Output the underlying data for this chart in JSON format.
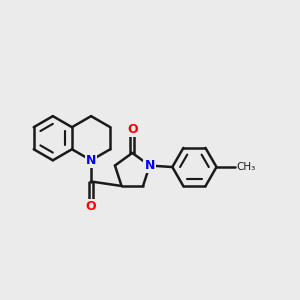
{
  "background_color": "#ebebeb",
  "bond_color": "#1a1a1a",
  "nitrogen_color": "#0000ff",
  "oxygen_color": "#ff0000",
  "line_width": 1.8,
  "figsize": [
    3.0,
    3.0
  ],
  "dpi": 100,
  "xlim": [
    -4.5,
    5.5
  ],
  "ylim": [
    -3.5,
    3.5
  ]
}
